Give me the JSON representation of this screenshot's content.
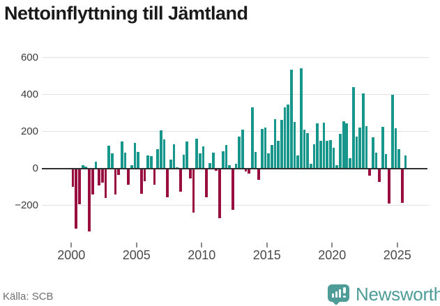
{
  "title": "Nettoinflyttning till Jämtland",
  "source": "Källa: SCB",
  "branding": {
    "name": "Newsworthy"
  },
  "colors": {
    "positive": "#17978c",
    "negative": "#970e3f",
    "grid": "#e2e2e2",
    "zero_line": "#303030",
    "brand": "#4d9c98",
    "title_text": "#1a1a1a",
    "axis_text": "#4a4a4a",
    "source_text": "#6e6e6e"
  },
  "chart_data": {
    "type": "bar",
    "title": "Nettoinflyttning till Jämtland",
    "xlabel": "",
    "ylabel": "",
    "unit": "net migration, persons per quarter",
    "frequency": "quarterly",
    "x_start": "2000 Q1",
    "x_end": "2025 Q3",
    "ylim": [
      -400,
      620
    ],
    "yticks": [
      600,
      400,
      200,
      0,
      -200
    ],
    "xticks": [
      2000,
      2005,
      2010,
      2015,
      2020,
      2025
    ],
    "grid": true,
    "legend": false,
    "series": [
      {
        "year": 2000,
        "values": [
          -100,
          -325,
          -195,
          18
        ]
      },
      {
        "year": 2001,
        "values": [
          10,
          -340,
          -142,
          36
        ]
      },
      {
        "year": 2002,
        "values": [
          -93,
          -78,
          -160,
          123
        ]
      },
      {
        "year": 2003,
        "values": [
          80,
          -142,
          -35,
          146
        ]
      },
      {
        "year": 2004,
        "values": [
          85,
          -86,
          18,
          138
        ]
      },
      {
        "year": 2005,
        "values": [
          90,
          -136,
          -68,
          70
        ]
      },
      {
        "year": 2006,
        "values": [
          65,
          -86,
          105,
          206
        ]
      },
      {
        "year": 2007,
        "values": [
          157,
          -154,
          49,
          132
        ]
      },
      {
        "year": 2008,
        "values": [
          8,
          -127,
          74,
          144
        ]
      },
      {
        "year": 2009,
        "values": [
          -53,
          -238,
          160,
          83
        ]
      },
      {
        "year": 2010,
        "values": [
          120,
          -157,
          30,
          86
        ]
      },
      {
        "year": 2011,
        "values": [
          -12,
          -268,
          93,
          127
        ]
      },
      {
        "year": 2012,
        "values": [
          19,
          -222,
          25,
          173
        ]
      },
      {
        "year": 2013,
        "values": [
          210,
          -16,
          -28,
          332
        ]
      },
      {
        "year": 2014,
        "values": [
          90,
          -61,
          212,
          220
        ]
      },
      {
        "year": 2015,
        "values": [
          80,
          126,
          265,
          150
        ]
      },
      {
        "year": 2016,
        "values": [
          263,
          331,
          346,
          535
        ]
      },
      {
        "year": 2017,
        "values": [
          250,
          70,
          540,
          211
        ]
      },
      {
        "year": 2018,
        "values": [
          190,
          25,
          130,
          243
        ]
      },
      {
        "year": 2019,
        "values": [
          148,
          247,
          148,
          154
        ]
      },
      {
        "year": 2020,
        "values": [
          111,
          16,
          189,
          255
        ]
      },
      {
        "year": 2021,
        "values": [
          244,
          56,
          438,
          173
        ]
      },
      {
        "year": 2022,
        "values": [
          222,
          404,
          228,
          -40
        ]
      },
      {
        "year": 2023,
        "values": [
          167,
          86,
          -74,
          225
        ]
      },
      {
        "year": 2024,
        "values": [
          77,
          -191,
          399,
          216
        ]
      },
      {
        "year": 2025,
        "values": [
          105,
          -185,
          70
        ]
      }
    ]
  }
}
